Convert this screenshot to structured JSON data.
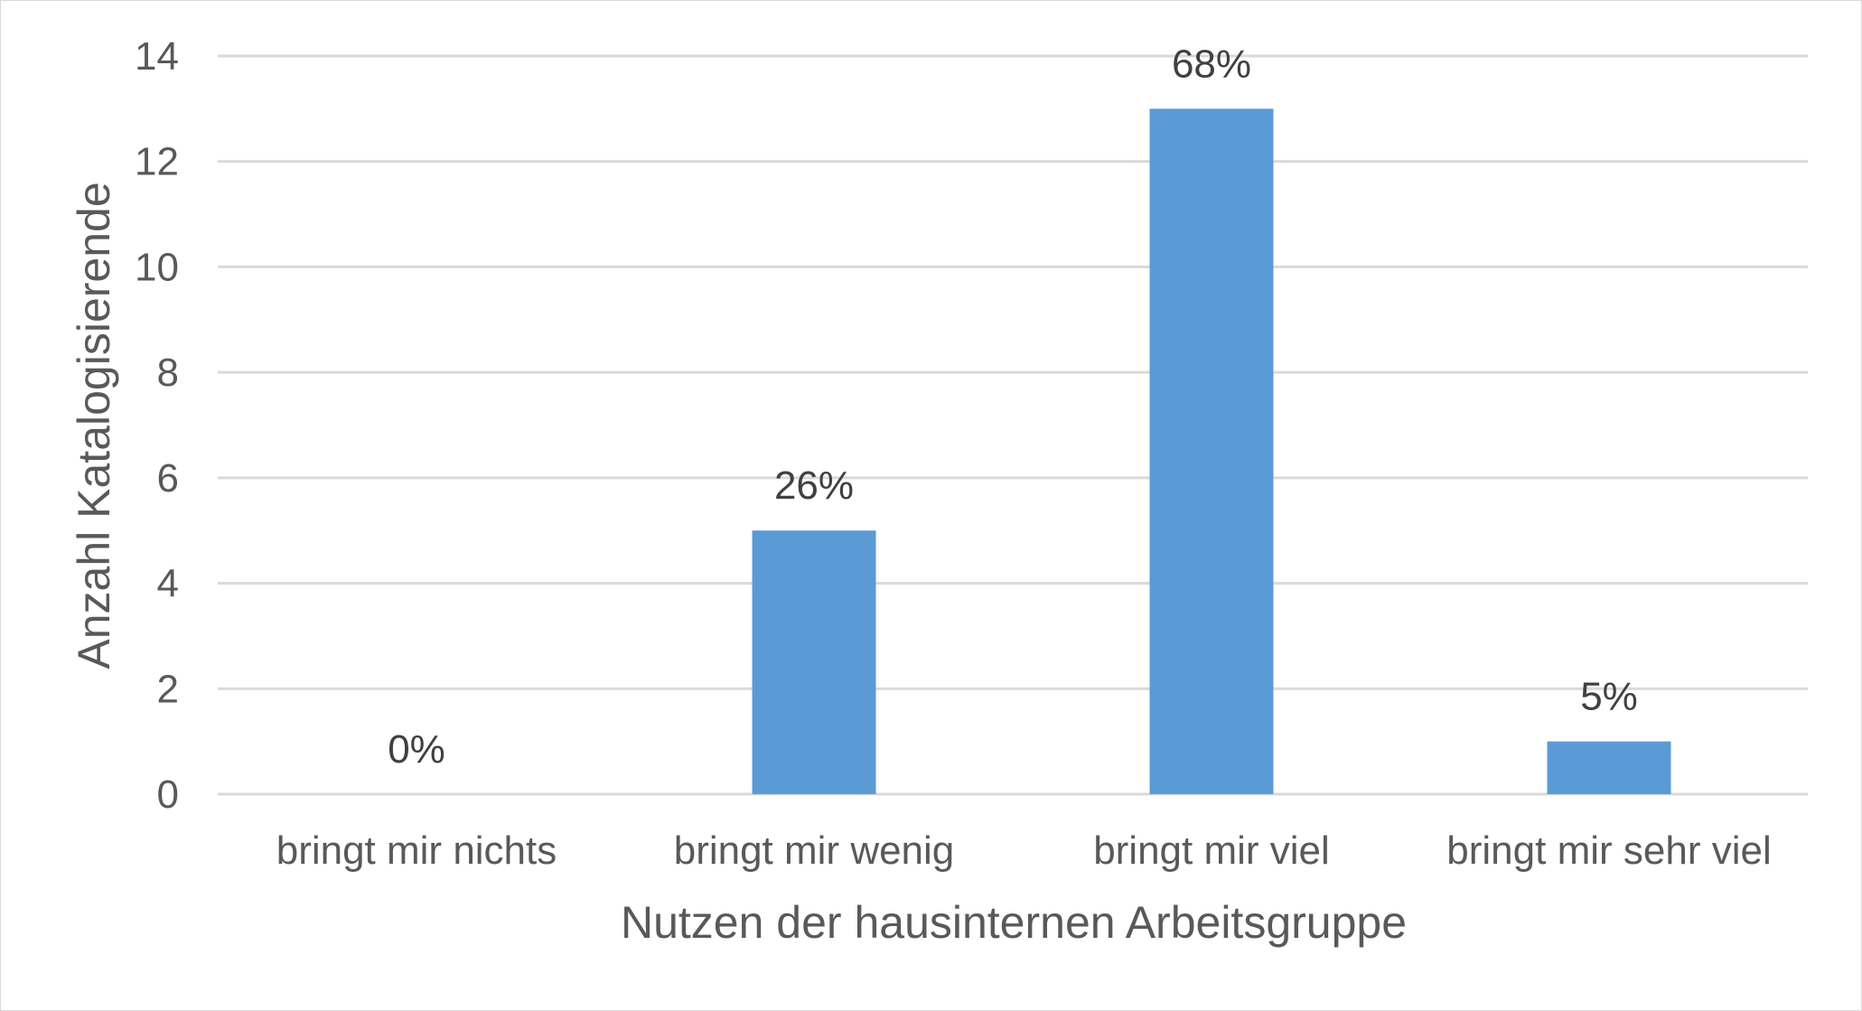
{
  "chart_data": {
    "type": "bar",
    "xlabel": "Nutzen der hausinternen Arbeitsgruppe",
    "ylabel": "Anzahl Katalogisierende",
    "categories": [
      "bringt mir nichts",
      "bringt mir wenig",
      "bringt mir viel",
      "bringt mir sehr viel"
    ],
    "values": [
      0,
      5,
      13,
      1
    ],
    "data_labels": [
      "0%",
      "26%",
      "68%",
      "5%"
    ],
    "ylim": [
      0,
      14
    ],
    "yticks": [
      0,
      2,
      4,
      6,
      8,
      10,
      12,
      14
    ],
    "grid": true,
    "bar_color": "#5b9bd5",
    "grid_color": "#d9d9d9"
  }
}
